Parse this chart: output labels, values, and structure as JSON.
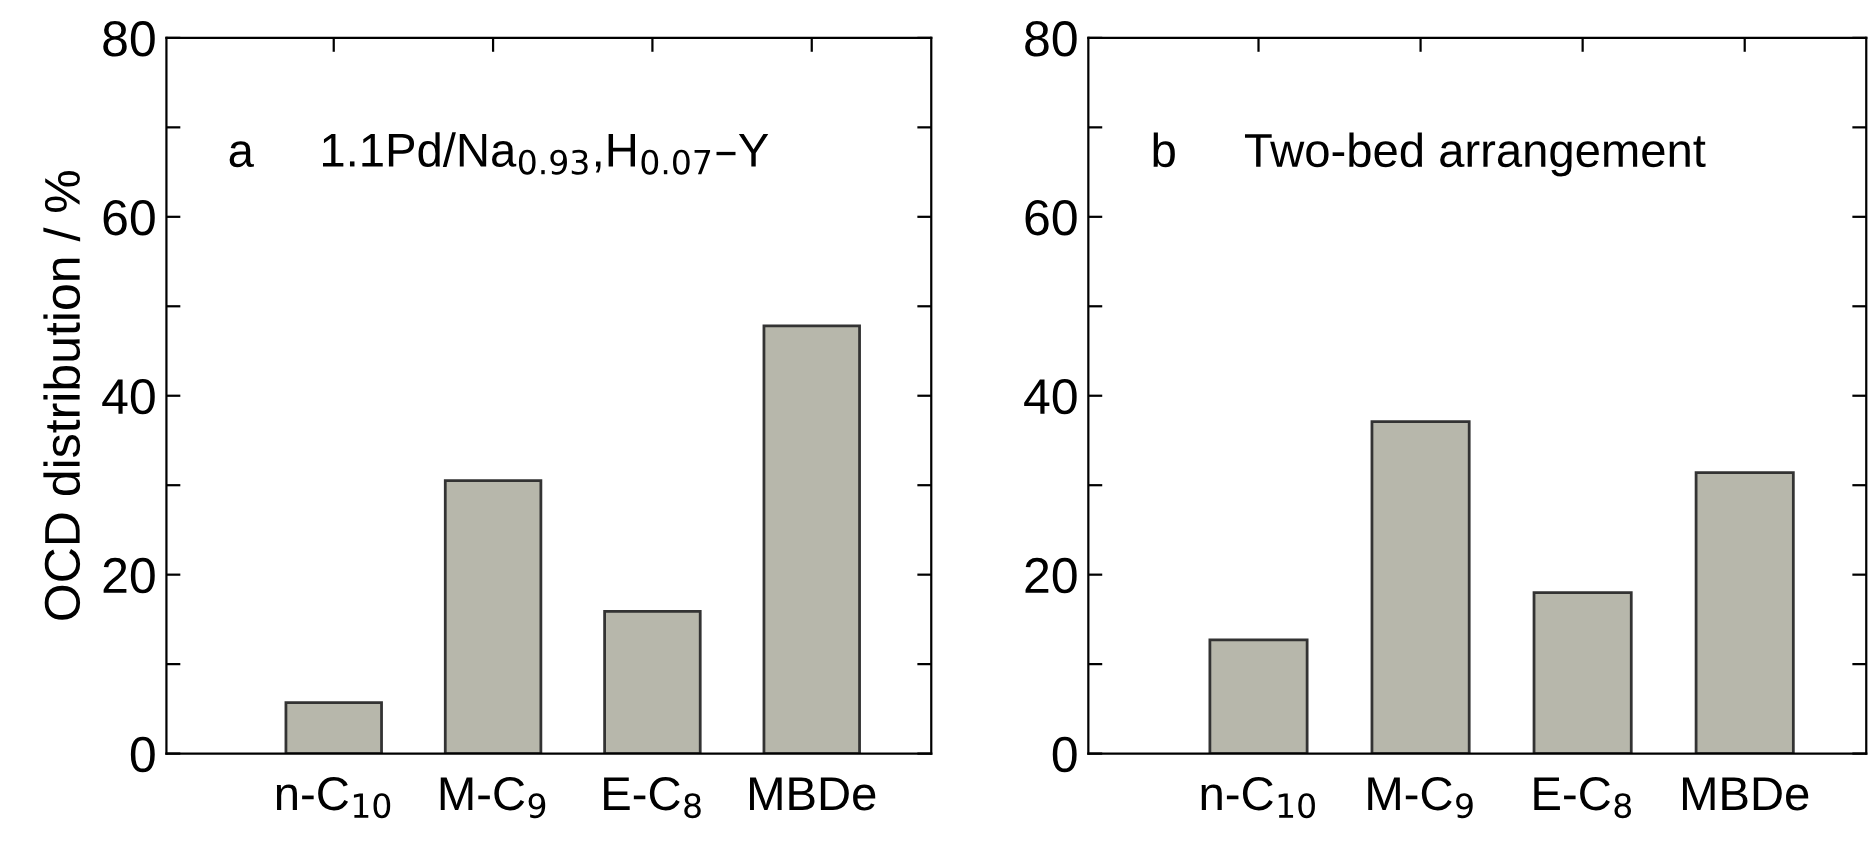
{
  "chart_data": [
    {
      "type": "bar",
      "categories": [
        "n-C$_{10}$",
        "M-C$_{9}$",
        "E-C$_{8}$",
        "MBDe"
      ],
      "values": [
        5.7,
        30.5,
        15.9,
        47.8
      ],
      "color": "#b7b7ab",
      "ylabel": "OCD distribution / %",
      "ylim": [
        0,
        80
      ],
      "yticks": [
        0,
        {
          "value": 10,
          "label": null
        },
        20,
        {
          "value": 30,
          "label": null
        },
        40,
        {
          "value": 50,
          "label": null
        },
        60,
        {
          "value": 70,
          "label": null
        },
        80
      ],
      "annotations": [
        "a",
        "1.1Pd/Na$_{0.93}$,H$_{0.07}$–Y"
      ],
      "grid": false,
      "legend": false
    },
    {
      "type": "bar",
      "categories": [
        "n-C$_{10}$",
        "M-C$_{9}$",
        "E-C$_{8}$",
        "MBDe"
      ],
      "values": [
        12.7,
        37.1,
        18.0,
        31.4
      ],
      "color": "#b7b7ab",
      "ylim": [
        0,
        80
      ],
      "yticks": [
        0,
        {
          "value": 10,
          "label": null
        },
        20,
        {
          "value": 30,
          "label": null
        },
        40,
        {
          "value": 50,
          "label": null
        },
        60,
        {
          "value": 70,
          "label": null
        },
        80
      ],
      "annotations": [
        "b",
        "Two-bed arrangement"
      ],
      "grid": false,
      "legend": false
    }
  ]
}
